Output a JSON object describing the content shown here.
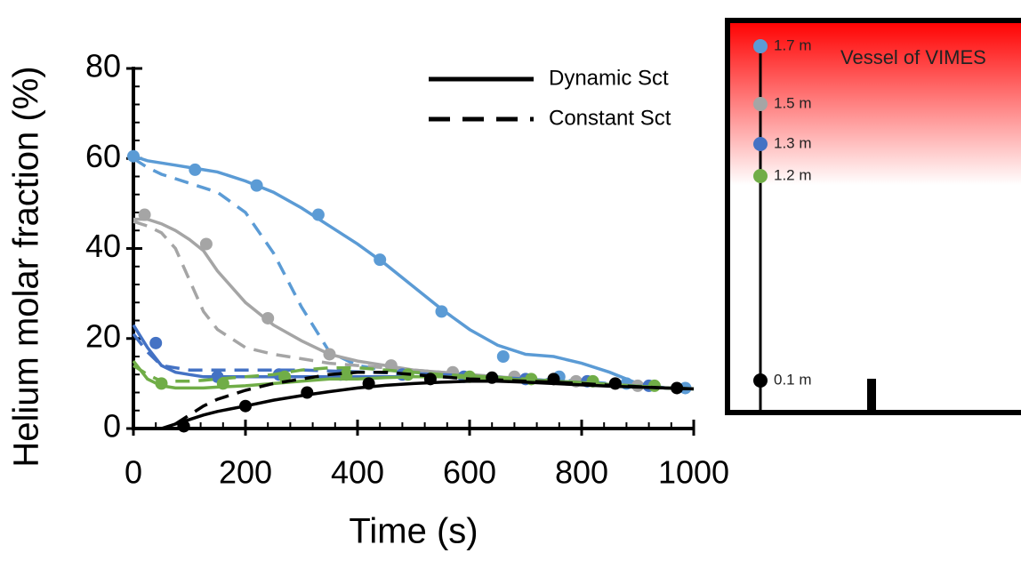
{
  "chart_data": {
    "type": "line",
    "xlabel": "Time (s)",
    "ylabel": "Helium molar fraction (%)",
    "xlim": [
      0,
      1000
    ],
    "ylim": [
      0,
      80
    ],
    "xticks": [
      0,
      200,
      400,
      600,
      800,
      1000
    ],
    "yticks": [
      0,
      20,
      40,
      60,
      80
    ],
    "legend": [
      {
        "name": "Dynamic Sct",
        "dash": "solid"
      },
      {
        "name": "Constant Sct",
        "dash": "dashed"
      }
    ],
    "x": [
      0,
      25,
      50,
      75,
      100,
      125,
      150,
      200,
      250,
      300,
      350,
      400,
      450,
      500,
      550,
      600,
      650,
      700,
      750,
      800,
      850,
      900,
      950,
      1000
    ],
    "series": [
      {
        "name": "1.7 m",
        "color": "#5b9bd5",
        "dynamic": [
          60.5,
          59.5,
          59,
          58.5,
          58,
          57.5,
          57,
          55,
          52.5,
          49,
          45,
          41,
          36.5,
          31.5,
          26.5,
          22,
          18.5,
          16.5,
          16,
          14.5,
          12.5,
          10,
          9,
          8.8
        ],
        "constant": [
          60,
          58,
          56.5,
          55.5,
          54.5,
          53.5,
          52.5,
          48,
          39,
          27,
          17,
          14,
          13,
          12.5,
          12,
          11.5,
          11.3,
          11,
          10.8,
          10.5,
          10,
          9.5,
          9,
          8.8
        ],
        "points": {
          "x": [
            0,
            110,
            220,
            330,
            440,
            550,
            660,
            760,
            880,
            985
          ],
          "y": [
            60.5,
            57.5,
            54,
            47.5,
            37.5,
            26,
            16,
            11.5,
            10,
            9
          ]
        }
      },
      {
        "name": "1.5 m",
        "color": "#a5a5a5",
        "dynamic": [
          46.5,
          46.5,
          45.5,
          44,
          42,
          39.5,
          35,
          28,
          23,
          19.5,
          16.5,
          15,
          14,
          13,
          12.5,
          12,
          11.5,
          11,
          10.5,
          10,
          9.8,
          9.5,
          9,
          8.8
        ],
        "constant": [
          46,
          45,
          43.5,
          40,
          33,
          26,
          22,
          18,
          16.5,
          15.5,
          14.5,
          14,
          13.5,
          13,
          12.5,
          12,
          11.5,
          11,
          10.5,
          10,
          9.8,
          9.5,
          9,
          8.8
        ],
        "points": {
          "x": [
            20,
            130,
            240,
            350,
            460,
            570,
            680,
            790,
            900
          ],
          "y": [
            47.5,
            41,
            24.5,
            16.5,
            14,
            12.5,
            11.5,
            10.5,
            9.5
          ]
        }
      },
      {
        "name": "1.3 m",
        "color": "#4472c4",
        "dynamic": [
          23,
          18,
          14,
          12.5,
          12,
          11.5,
          11.5,
          11.5,
          11.5,
          11.5,
          11.5,
          11.5,
          11.5,
          11.5,
          11.5,
          11.3,
          11,
          10.8,
          10.5,
          10.2,
          9.8,
          9.4,
          9,
          8.8
        ],
        "constant": [
          21,
          17,
          14,
          13.5,
          13,
          13,
          13,
          13,
          13,
          13,
          12.8,
          12.6,
          12.4,
          12.2,
          12,
          11.7,
          11.4,
          11,
          10.6,
          10.2,
          9.8,
          9.4,
          9,
          8.8
        ],
        "points": {
          "x": [
            40,
            150,
            260,
            370,
            480,
            590,
            700,
            810,
            920
          ],
          "y": [
            19,
            11.5,
            12,
            12,
            12,
            11.5,
            11,
            10.5,
            9.5
          ]
        }
      },
      {
        "name": "1.2 m",
        "color": "#70ad47",
        "dynamic": [
          15,
          11,
          9.5,
          9,
          9,
          9,
          9.2,
          9.5,
          10,
          10.5,
          11,
          11,
          11.3,
          11.5,
          11.5,
          11.3,
          11,
          10.8,
          10.5,
          10.2,
          9.8,
          9.4,
          9,
          8.8
        ],
        "constant": [
          14,
          12,
          10.5,
          10.5,
          10.5,
          10.7,
          11,
          11.5,
          12,
          13,
          13.5,
          13.5,
          13,
          12.5,
          12,
          11.7,
          11.4,
          11,
          10.6,
          10.2,
          9.8,
          9.4,
          9,
          8.8
        ],
        "points": {
          "x": [
            50,
            160,
            270,
            380,
            490,
            600,
            710,
            820,
            930
          ],
          "y": [
            10,
            10,
            11.5,
            12,
            12,
            11.5,
            11,
            10.5,
            9.5
          ]
        }
      },
      {
        "name": "0.1 m",
        "color": "#000000",
        "dynamic": [
          null,
          null,
          0,
          1,
          2,
          3,
          3.8,
          5,
          6.3,
          7.3,
          8.2,
          9,
          9.6,
          10,
          10.3,
          10.5,
          10.5,
          10.3,
          10,
          9.7,
          9.4,
          9.2,
          9,
          8.8
        ],
        "constant": [
          null,
          null,
          null,
          1,
          3,
          5,
          6.5,
          8.5,
          10,
          11,
          12,
          12.5,
          12.5,
          12,
          11.5,
          11,
          10.8,
          10.5,
          10.3,
          10,
          9.6,
          9.3,
          9,
          8.8
        ],
        "points": {
          "x": [
            90,
            200,
            310,
            420,
            530,
            640,
            750,
            860,
            970
          ],
          "y": [
            0.5,
            5,
            8,
            10,
            11,
            11.3,
            11,
            10,
            9
          ]
        }
      }
    ]
  },
  "diagram": {
    "title": "Vessel of VIMES"
  }
}
